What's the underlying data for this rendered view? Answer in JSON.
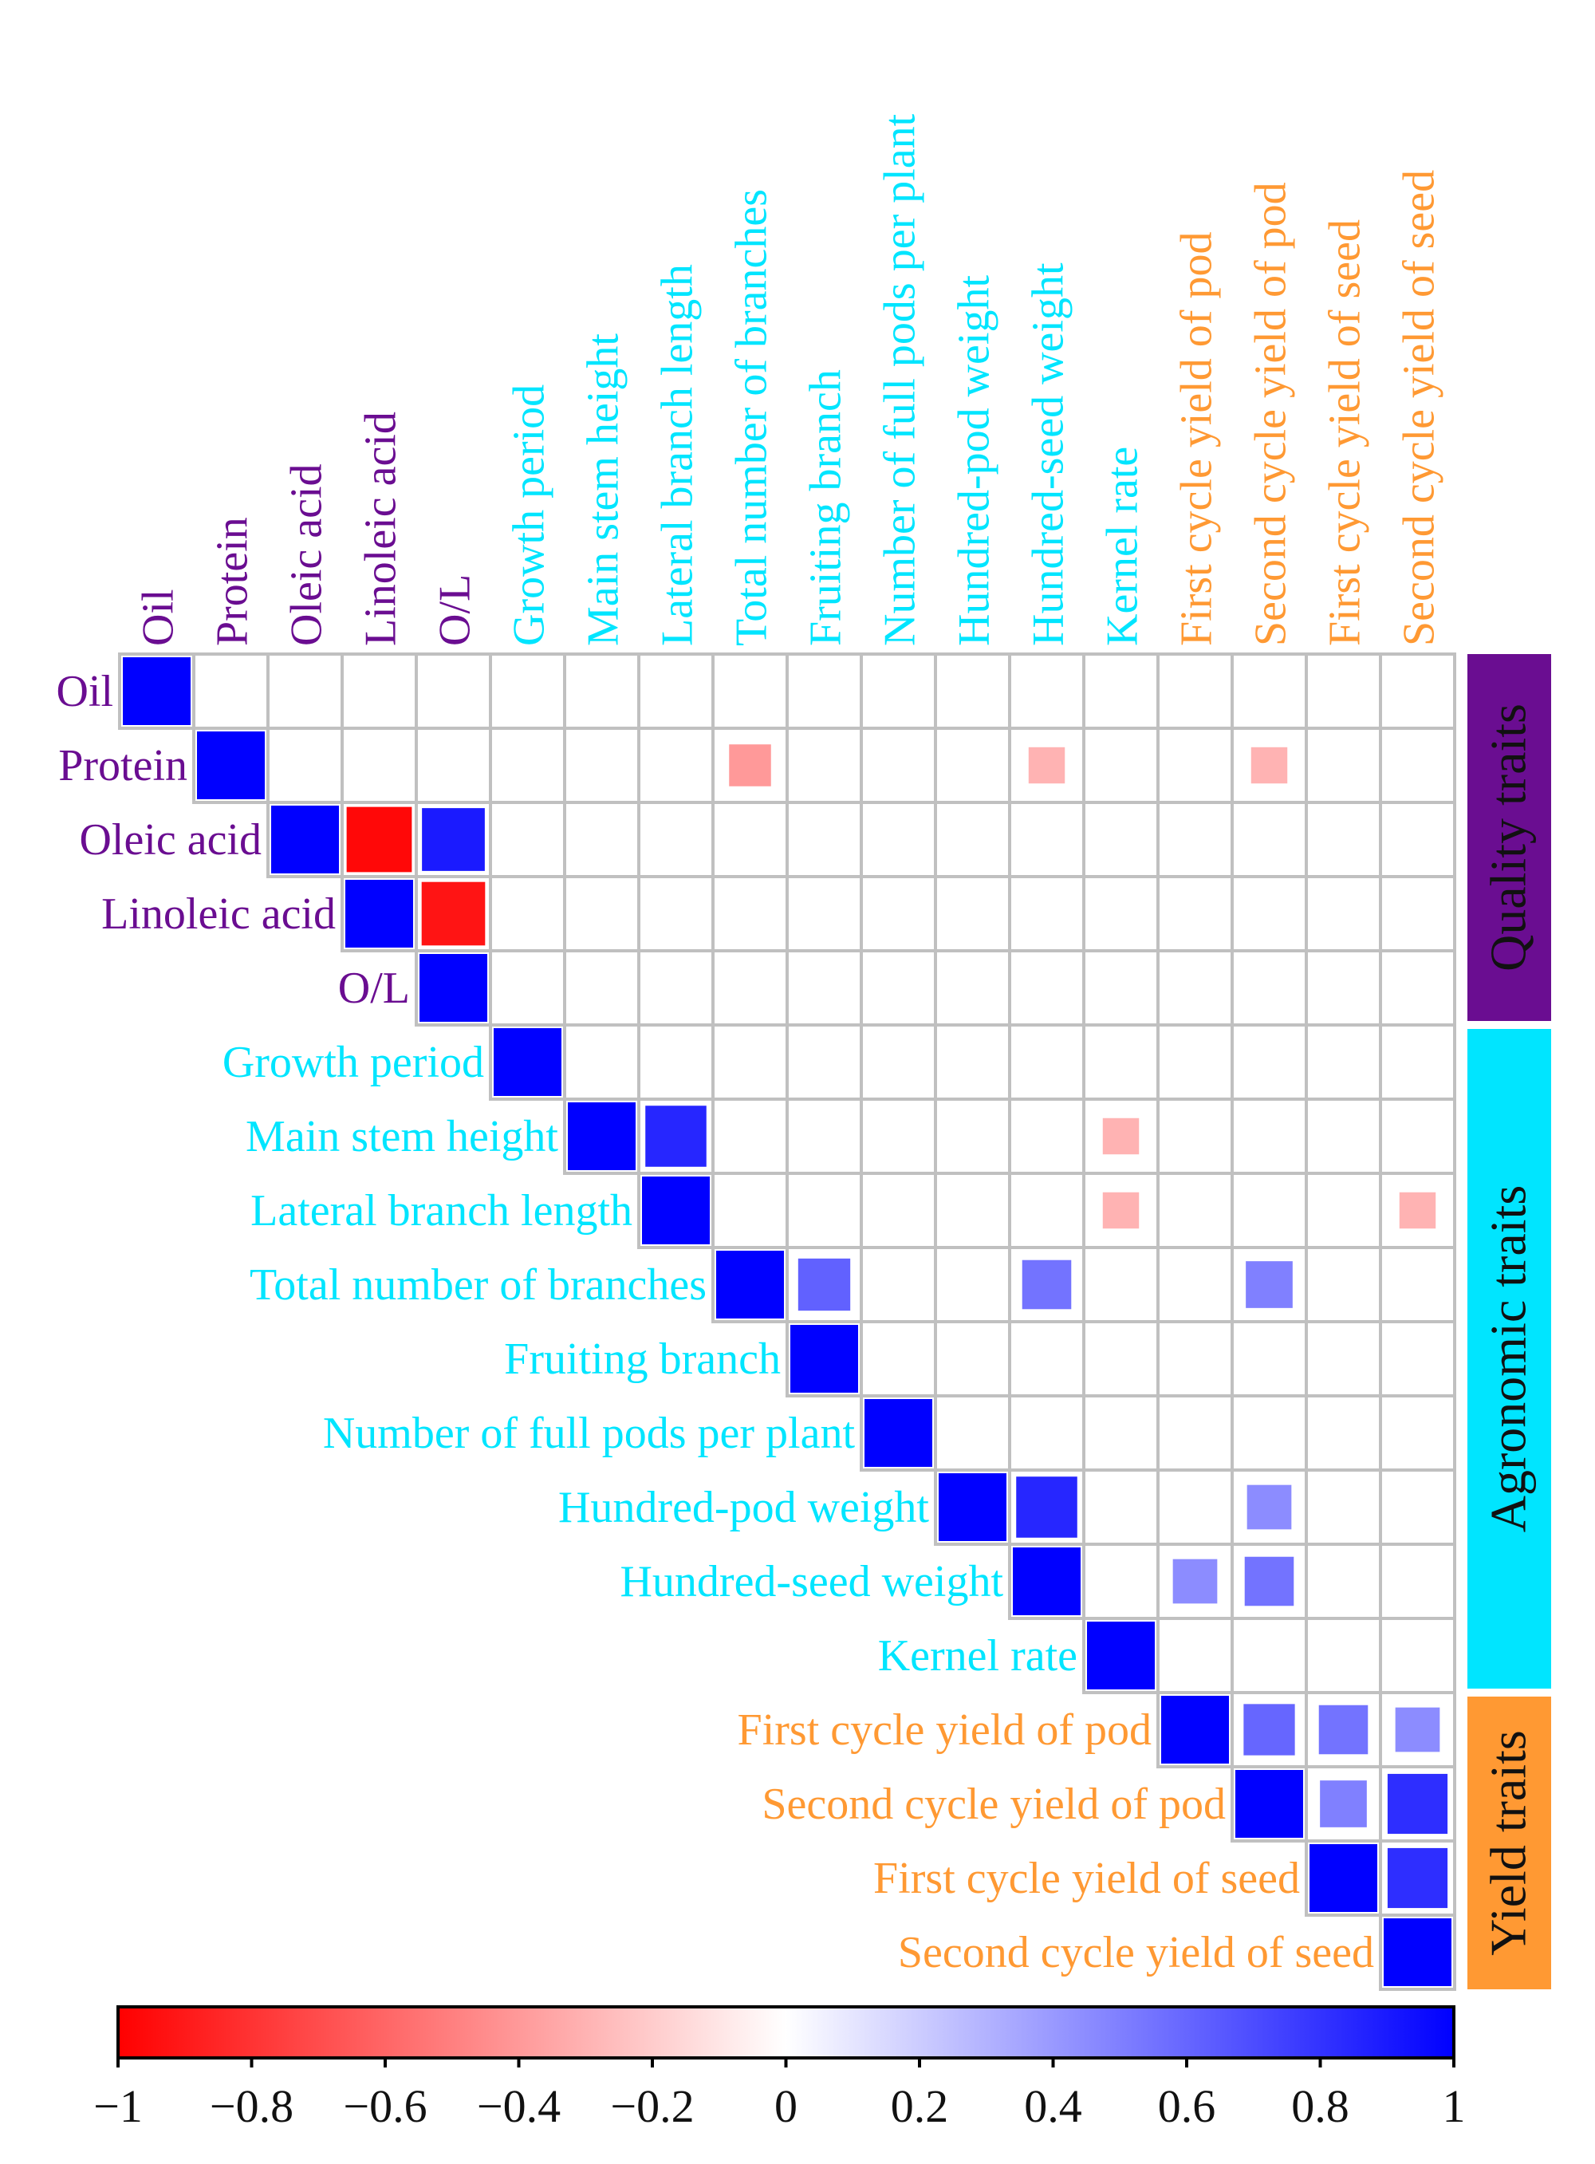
{
  "chart_data": {
    "type": "heatmap",
    "subtype": "upper-triangular correlation matrix",
    "traits": [
      {
        "name": "Oil",
        "group": "quality"
      },
      {
        "name": "Protein",
        "group": "quality"
      },
      {
        "name": "Oleic acid",
        "group": "quality"
      },
      {
        "name": "Linoleic acid",
        "group": "quality"
      },
      {
        "name": "O/L",
        "group": "quality"
      },
      {
        "name": "Growth period",
        "group": "agronomic"
      },
      {
        "name": "Main stem height",
        "group": "agronomic"
      },
      {
        "name": "Lateral branch length",
        "group": "agronomic"
      },
      {
        "name": "Total number of branches",
        "group": "agronomic"
      },
      {
        "name": "Fruiting branch",
        "group": "agronomic"
      },
      {
        "name": "Number of full pods per plant",
        "group": "agronomic"
      },
      {
        "name": "Hundred-pod weight",
        "group": "agronomic"
      },
      {
        "name": "Hundred-seed weight",
        "group": "agronomic"
      },
      {
        "name": "Kernel rate",
        "group": "agronomic"
      },
      {
        "name": "First cycle yield of pod",
        "group": "yield"
      },
      {
        "name": "Second cycle yield of pod",
        "group": "yield"
      },
      {
        "name": "First cycle yield of seed",
        "group": "yield"
      },
      {
        "name": "Second cycle yield of seed",
        "group": "yield"
      }
    ],
    "groups": [
      {
        "key": "quality",
        "label": "Quality traits",
        "color": "#6a0d91",
        "text_color": "#111111"
      },
      {
        "key": "agronomic",
        "label": "Agronomic traits",
        "color": "#00e5ff",
        "text_color": "#111111"
      },
      {
        "key": "yield",
        "label": "Yield traits",
        "color": "#ff9933",
        "text_color": "#111111"
      }
    ],
    "label_colors": {
      "quality": "#6a0d91",
      "agronomic": "#00e5ff",
      "yield": "#ff9933"
    },
    "correlations": [
      {
        "row": 0,
        "col": 0,
        "r": 1.0
      },
      {
        "row": 1,
        "col": 1,
        "r": 1.0
      },
      {
        "row": 1,
        "col": 8,
        "r": -0.4
      },
      {
        "row": 1,
        "col": 12,
        "r": -0.3
      },
      {
        "row": 1,
        "col": 15,
        "r": -0.3
      },
      {
        "row": 2,
        "col": 2,
        "r": 1.0
      },
      {
        "row": 2,
        "col": 3,
        "r": -0.97
      },
      {
        "row": 2,
        "col": 4,
        "r": 0.9
      },
      {
        "row": 3,
        "col": 3,
        "r": 1.0
      },
      {
        "row": 3,
        "col": 4,
        "r": -0.92
      },
      {
        "row": 4,
        "col": 4,
        "r": 1.0
      },
      {
        "row": 5,
        "col": 5,
        "r": 1.0
      },
      {
        "row": 6,
        "col": 6,
        "r": 1.0
      },
      {
        "row": 6,
        "col": 7,
        "r": 0.85
      },
      {
        "row": 6,
        "col": 13,
        "r": -0.3
      },
      {
        "row": 7,
        "col": 7,
        "r": 1.0
      },
      {
        "row": 7,
        "col": 13,
        "r": -0.3
      },
      {
        "row": 7,
        "col": 17,
        "r": -0.3
      },
      {
        "row": 8,
        "col": 8,
        "r": 1.0
      },
      {
        "row": 8,
        "col": 9,
        "r": 0.62
      },
      {
        "row": 8,
        "col": 12,
        "r": 0.55
      },
      {
        "row": 8,
        "col": 15,
        "r": 0.5
      },
      {
        "row": 9,
        "col": 9,
        "r": 1.0
      },
      {
        "row": 10,
        "col": 10,
        "r": 1.0
      },
      {
        "row": 11,
        "col": 11,
        "r": 1.0
      },
      {
        "row": 11,
        "col": 12,
        "r": 0.85
      },
      {
        "row": 11,
        "col": 15,
        "r": 0.45
      },
      {
        "row": 12,
        "col": 12,
        "r": 1.0
      },
      {
        "row": 12,
        "col": 14,
        "r": 0.45
      },
      {
        "row": 12,
        "col": 15,
        "r": 0.55
      },
      {
        "row": 13,
        "col": 13,
        "r": 1.0
      },
      {
        "row": 14,
        "col": 14,
        "r": 1.0
      },
      {
        "row": 14,
        "col": 15,
        "r": 0.6
      },
      {
        "row": 14,
        "col": 16,
        "r": 0.55
      },
      {
        "row": 14,
        "col": 17,
        "r": 0.45
      },
      {
        "row": 15,
        "col": 15,
        "r": 1.0
      },
      {
        "row": 15,
        "col": 16,
        "r": 0.5
      },
      {
        "row": 15,
        "col": 17,
        "r": 0.82
      },
      {
        "row": 16,
        "col": 16,
        "r": 1.0
      },
      {
        "row": 16,
        "col": 17,
        "r": 0.82
      },
      {
        "row": 17,
        "col": 17,
        "r": 1.0
      }
    ],
    "colorbar": {
      "range": [
        -1,
        1
      ],
      "ticks": [
        -1,
        -0.8,
        -0.6,
        -0.4,
        -0.2,
        0,
        0.2,
        0.4,
        0.6,
        0.8,
        1
      ],
      "tick_labels": [
        "−1",
        "−0.8",
        "−0.6",
        "−0.4",
        "−0.2",
        "0",
        "0.2",
        "0.4",
        "0.6",
        "0.8",
        "1"
      ],
      "low_color": "#ff0000",
      "mid_color": "#ffffff",
      "high_color": "#0000ff"
    },
    "grid_color": "#c0c0c0"
  }
}
